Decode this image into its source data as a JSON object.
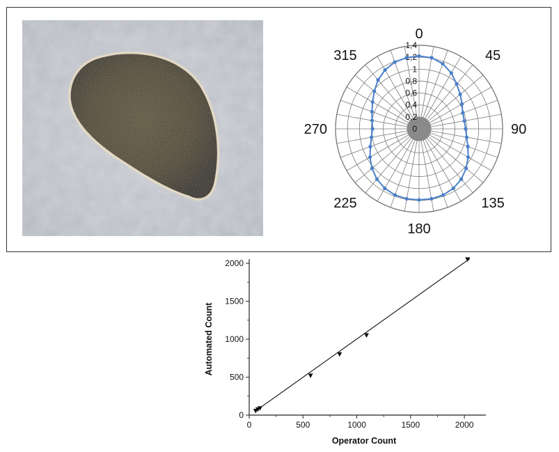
{
  "chart_data": [
    {
      "type": "polar-line",
      "angle_labels": [
        "0",
        "45",
        "90",
        "135",
        "180",
        "225",
        "270",
        "315"
      ],
      "radial_ticks": [
        "0",
        "0,2",
        "0,4",
        "0,6",
        "0,8",
        "1",
        "1,2",
        "1,4"
      ],
      "rmax": 1.4,
      "series_color": "#4a7fc8",
      "points": [
        {
          "angle": 0,
          "r": 1.22
        },
        {
          "angle": 10,
          "r": 1.21
        },
        {
          "angle": 20,
          "r": 1.16
        },
        {
          "angle": 30,
          "r": 1.08
        },
        {
          "angle": 40,
          "r": 0.98
        },
        {
          "angle": 50,
          "r": 0.9
        },
        {
          "angle": 60,
          "r": 0.83
        },
        {
          "angle": 70,
          "r": 0.78
        },
        {
          "angle": 80,
          "r": 0.77
        },
        {
          "angle": 90,
          "r": 0.78
        },
        {
          "angle": 100,
          "r": 0.81
        },
        {
          "angle": 110,
          "r": 0.87
        },
        {
          "angle": 120,
          "r": 0.95
        },
        {
          "angle": 130,
          "r": 1.03
        },
        {
          "angle": 140,
          "r": 1.1
        },
        {
          "angle": 150,
          "r": 1.15
        },
        {
          "angle": 160,
          "r": 1.18
        },
        {
          "angle": 170,
          "r": 1.19
        },
        {
          "angle": 180,
          "r": 1.19
        },
        {
          "angle": 190,
          "r": 1.19
        },
        {
          "angle": 200,
          "r": 1.18
        },
        {
          "angle": 210,
          "r": 1.15
        },
        {
          "angle": 220,
          "r": 1.1
        },
        {
          "angle": 230,
          "r": 1.03
        },
        {
          "angle": 240,
          "r": 0.95
        },
        {
          "angle": 250,
          "r": 0.87
        },
        {
          "angle": 260,
          "r": 0.81
        },
        {
          "angle": 270,
          "r": 0.78
        },
        {
          "angle": 280,
          "r": 0.8
        },
        {
          "angle": 290,
          "r": 0.84
        },
        {
          "angle": 300,
          "r": 0.9
        },
        {
          "angle": 310,
          "r": 0.98
        },
        {
          "angle": 320,
          "r": 1.07
        },
        {
          "angle": 330,
          "r": 1.14
        },
        {
          "angle": 340,
          "r": 1.19
        },
        {
          "angle": 350,
          "r": 1.21
        }
      ]
    },
    {
      "type": "scatter",
      "xlabel": "Operator Count",
      "ylabel": "Automated Count",
      "xlim": [
        0,
        2200
      ],
      "ylim": [
        0,
        2000
      ],
      "xticks": [
        "0",
        "500",
        "1000",
        "1500",
        "2000"
      ],
      "yticks": [
        "0",
        "500",
        "1000",
        "1500",
        "2000"
      ],
      "points": [
        {
          "x": 60,
          "y": 55
        },
        {
          "x": 80,
          "y": 75
        },
        {
          "x": 100,
          "y": 90
        },
        {
          "x": 570,
          "y": 520
        },
        {
          "x": 840,
          "y": 800
        },
        {
          "x": 1090,
          "y": 1050
        },
        {
          "x": 2030,
          "y": 2050
        }
      ],
      "fit_line": [
        {
          "x": 50,
          "y": 45
        },
        {
          "x": 2050,
          "y": 2060
        }
      ]
    }
  ],
  "images": {
    "cell_photo": {
      "semantic": "microscope-cell-photo"
    }
  }
}
